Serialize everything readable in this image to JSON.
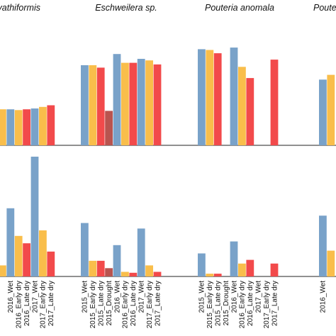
{
  "chart_data": {
    "type": "bar",
    "series_colors": {
      "Wet": "#79a2c9",
      "Early dry": "#f9be4b",
      "Late dry": "#f24a4b",
      "Drought": "#b9544f"
    },
    "panels": [
      {
        "groups": [
          {
            "title": "ra cyathiformis",
            "bars": [
              {
                "label": "",
                "color": "#f9be4b",
                "value": 0.45
              },
              {
                "label": "2016_Wet",
                "color": "#79a2c9",
                "value": 0.45
              },
              {
                "label": "2016_Early dry",
                "color": "#f9be4b",
                "value": 0.44
              },
              {
                "label": "2016_Late dry",
                "color": "#f24a4b",
                "value": 0.45
              },
              {
                "label": "2017_Wet",
                "color": "#79a2c9",
                "value": 0.46
              },
              {
                "label": "2017_Early dry",
                "color": "#f9be4b",
                "value": 0.48
              },
              {
                "label": "2017_Late dry",
                "color": "#f24a4b",
                "value": 0.5
              }
            ]
          },
          {
            "title": "Eschweilera sp.",
            "bars": [
              {
                "label": "2015_Wet",
                "color": "#79a2c9",
                "value": 1.0
              },
              {
                "label": "2015_Early dry",
                "color": "#f9be4b",
                "value": 1.0
              },
              {
                "label": "2015_Late dry",
                "color": "#f24a4b",
                "value": 0.97
              },
              {
                "label": "2015_Drought",
                "color": "#b9544f",
                "value": 0.43
              },
              {
                "label": "2016_Wet",
                "color": "#79a2c9",
                "value": 1.14
              },
              {
                "label": "2016_Early dry",
                "color": "#f9be4b",
                "value": 1.03
              },
              {
                "label": "2016_Late dry",
                "color": "#f24a4b",
                "value": 1.03
              },
              {
                "label": "2017_Wet",
                "color": "#79a2c9",
                "value": 1.08
              },
              {
                "label": "2017_Early dry",
                "color": "#f9be4b",
                "value": 1.06
              },
              {
                "label": "2017_Late dry",
                "color": "#f24a4b",
                "value": 1.01
              }
            ]
          },
          {
            "title": "Pouteria anomala",
            "bars": [
              {
                "label": "2015_Wet",
                "color": "#79a2c9",
                "value": 1.2
              },
              {
                "label": "2015_Early dry",
                "color": "#f9be4b",
                "value": 1.19
              },
              {
                "label": "2015_Late dry",
                "color": "#f24a4b",
                "value": 1.15
              },
              {
                "label": "2015_Drought",
                "color": "#b9544f",
                "value": 0
              },
              {
                "label": "2016_Wet",
                "color": "#79a2c9",
                "value": 1.22
              },
              {
                "label": "2016_Early dry",
                "color": "#f9be4b",
                "value": 0.98
              },
              {
                "label": "2016_Late dry",
                "color": "#f24a4b",
                "value": 0.84
              },
              {
                "label": "2017_Wet",
                "color": "#79a2c9",
                "value": 0
              },
              {
                "label": "2017_Early dry",
                "color": "#f9be4b",
                "value": 0
              },
              {
                "label": "2017_Late dry",
                "color": "#f24a4b",
                "value": 1.07
              }
            ]
          },
          {
            "title": "Poute",
            "bars": [
              {
                "label": "2016_Wet",
                "color": "#79a2c9",
                "value": 0.82
              },
              {
                "label": "",
                "color": "#f9be4b",
                "value": 0.88
              }
            ]
          }
        ]
      },
      {
        "groups": [
          {
            "title": "",
            "bars": [
              {
                "label": "",
                "color": "#f9be4b",
                "value": 0.12
              },
              {
                "label": "2016_Wet",
                "color": "#79a2c9",
                "value": 0.74
              },
              {
                "label": "2016_Early dry",
                "color": "#f9be4b",
                "value": 0.44
              },
              {
                "label": "2016_Late dry",
                "color": "#f24a4b",
                "value": 0.36
              },
              {
                "label": "2017_Wet",
                "color": "#79a2c9",
                "value": 1.3
              },
              {
                "label": "2017_Early dry",
                "color": "#f9be4b",
                "value": 0.5
              },
              {
                "label": "2017_Late dry",
                "color": "#f24a4b",
                "value": 0.27
              }
            ]
          },
          {
            "title": "",
            "bars": [
              {
                "label": "2015_Wet",
                "color": "#79a2c9",
                "value": 0.58
              },
              {
                "label": "2015_Early dry",
                "color": "#f9be4b",
                "value": 0.17
              },
              {
                "label": "2015_Late dry",
                "color": "#f24a4b",
                "value": 0.17
              },
              {
                "label": "2015_Drought",
                "color": "#b9544f",
                "value": 0.09
              },
              {
                "label": "2016_Wet",
                "color": "#79a2c9",
                "value": 0.34
              },
              {
                "label": "2016_Early dry",
                "color": "#f9be4b",
                "value": 0.05
              },
              {
                "label": "2016_Late dry",
                "color": "#f24a4b",
                "value": 0.04
              },
              {
                "label": "2017_Wet",
                "color": "#79a2c9",
                "value": 0.52
              },
              {
                "label": "2017_Early dry",
                "color": "#f9be4b",
                "value": 0.12
              },
              {
                "label": "2017_Late dry",
                "color": "#f24a4b",
                "value": 0.05
              }
            ]
          },
          {
            "title": "",
            "bars": [
              {
                "label": "2015_Wet",
                "color": "#79a2c9",
                "value": 0.25
              },
              {
                "label": "2015_Early dry",
                "color": "#f9be4b",
                "value": 0.03
              },
              {
                "label": "2015_Late dry",
                "color": "#f24a4b",
                "value": 0.03
              },
              {
                "label": "2015_Drought",
                "color": "#b9544f",
                "value": 0
              },
              {
                "label": "2016_Wet",
                "color": "#79a2c9",
                "value": 0.38
              },
              {
                "label": "2016_Early dry",
                "color": "#f9be4b",
                "value": 0.14
              },
              {
                "label": "2016_Late dry",
                "color": "#f24a4b",
                "value": 0.18
              },
              {
                "label": "2017_Wet",
                "color": "#79a2c9",
                "value": 0
              },
              {
                "label": "2017_Early dry",
                "color": "#f9be4b",
                "value": 0
              },
              {
                "label": "2017_Late dry",
                "color": "#f24a4b",
                "value": 0.14
              }
            ]
          },
          {
            "title": "",
            "bars": [
              {
                "label": "2016_Wet",
                "color": "#79a2c9",
                "value": 0.66
              },
              {
                "label": "",
                "color": "#f9be4b",
                "value": 0.28
              }
            ]
          }
        ]
      }
    ]
  }
}
